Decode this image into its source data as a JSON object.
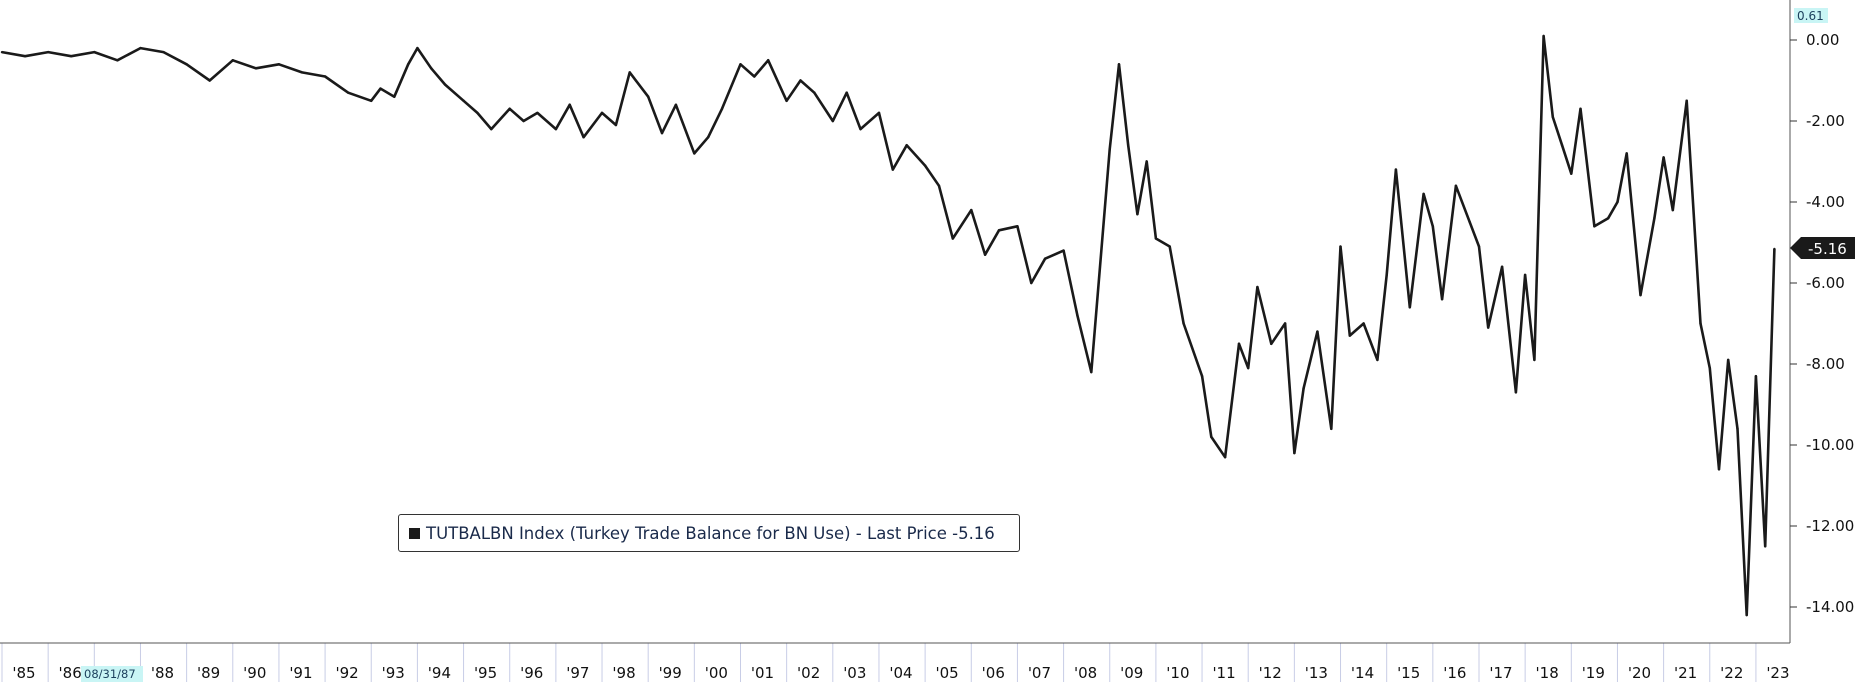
{
  "chart_data": {
    "type": "line",
    "title": "",
    "xlabel": "",
    "ylabel": "",
    "ylim": [
      -15.0,
      0.6
    ],
    "y_ticks": [
      "0.00",
      "-2.00",
      "-4.00",
      "-6.00",
      "-8.00",
      "-10.00",
      "-12.00",
      "-14.00"
    ],
    "x_tick_labels": [
      "'85",
      "'86",
      "'87",
      "'88",
      "'89",
      "'90",
      "'91",
      "'92",
      "'93",
      "'94",
      "'95",
      "'96",
      "'97",
      "'98",
      "'99",
      "'00",
      "'01",
      "'02",
      "'03",
      "'04",
      "'05",
      "'06",
      "'07",
      "'08",
      "'09",
      "'10",
      "'11",
      "'12",
      "'13",
      "'14",
      "'15",
      "'16",
      "'17",
      "'18",
      "'19",
      "'20",
      "'21",
      "'22",
      "'23"
    ],
    "axis_max_label": "0.61",
    "axis_min_date_label": "08/31/87",
    "last_value_label": "-5.16",
    "legend": "TUTBALBN Index (Turkey Trade Balance for BN Use) - Last Price -5.16",
    "series": [
      {
        "color": "#1a1a1a",
        "x": [
          1985.0,
          1985.5,
          1986.0,
          1986.5,
          1987.0,
          1987.5,
          1988.0,
          1988.5,
          1989.0,
          1989.5,
          1990.0,
          1990.5,
          1991.0,
          1991.5,
          1992.0,
          1992.5,
          1993.0,
          1993.2,
          1993.5,
          1993.8,
          1994.0,
          1994.3,
          1994.6,
          1995.0,
          1995.3,
          1995.6,
          1996.0,
          1996.3,
          1996.6,
          1997.0,
          1997.3,
          1997.6,
          1998.0,
          1998.3,
          1998.6,
          1999.0,
          1999.3,
          1999.6,
          2000.0,
          2000.3,
          2000.6,
          2001.0,
          2001.3,
          2001.6,
          2002.0,
          2002.3,
          2002.6,
          2003.0,
          2003.3,
          2003.6,
          2004.0,
          2004.3,
          2004.6,
          2005.0,
          2005.3,
          2005.6,
          2006.0,
          2006.3,
          2006.6,
          2007.0,
          2007.3,
          2007.6,
          2008.0,
          2008.3,
          2008.6,
          2009.0,
          2009.2,
          2009.4,
          2009.6,
          2009.8,
          2010.0,
          2010.3,
          2010.6,
          2011.0,
          2011.2,
          2011.5,
          2011.8,
          2012.0,
          2012.2,
          2012.5,
          2012.8,
          2013.0,
          2013.2,
          2013.5,
          2013.8,
          2014.0,
          2014.2,
          2014.5,
          2014.8,
          2015.0,
          2015.2,
          2015.5,
          2015.8,
          2016.0,
          2016.2,
          2016.5,
          2016.8,
          2017.0,
          2017.2,
          2017.5,
          2017.8,
          2018.0,
          2018.2,
          2018.4,
          2018.6,
          2018.8,
          2019.0,
          2019.2,
          2019.5,
          2019.8,
          2020.0,
          2020.2,
          2020.5,
          2020.8,
          2021.0,
          2021.2,
          2021.5,
          2021.8,
          2022.0,
          2022.2,
          2022.4,
          2022.6,
          2022.8,
          2023.0,
          2023.2,
          2023.4
        ],
        "values": [
          -0.3,
          -0.4,
          -0.3,
          -0.4,
          -0.3,
          -0.5,
          -0.2,
          -0.3,
          -0.6,
          -1.0,
          -0.5,
          -0.7,
          -0.6,
          -0.8,
          -0.9,
          -1.3,
          -1.5,
          -1.2,
          -1.4,
          -0.6,
          -0.2,
          -0.7,
          -1.1,
          -1.5,
          -1.8,
          -2.2,
          -1.7,
          -2.0,
          -1.8,
          -2.2,
          -1.6,
          -2.4,
          -1.8,
          -2.1,
          -0.8,
          -1.4,
          -2.3,
          -1.6,
          -2.8,
          -2.4,
          -1.7,
          -0.6,
          -0.9,
          -0.5,
          -1.5,
          -1.0,
          -1.3,
          -2.0,
          -1.3,
          -2.2,
          -1.8,
          -3.2,
          -2.6,
          -3.1,
          -3.6,
          -4.9,
          -4.2,
          -5.3,
          -4.7,
          -4.6,
          -6.0,
          -5.4,
          -5.2,
          -6.8,
          -8.2,
          -2.7,
          -0.6,
          -2.6,
          -4.3,
          -3.0,
          -4.9,
          -5.1,
          -7.0,
          -8.3,
          -9.8,
          -10.3,
          -7.5,
          -8.1,
          -6.1,
          -7.5,
          -7.0,
          -10.2,
          -8.6,
          -7.2,
          -9.6,
          -5.1,
          -7.3,
          -7.0,
          -7.9,
          -5.8,
          -3.2,
          -6.6,
          -3.8,
          -4.6,
          -6.4,
          -3.6,
          -4.5,
          -5.1,
          -7.1,
          -5.6,
          -8.7,
          -5.8,
          -7.9,
          0.1,
          -1.9,
          -2.6,
          -3.3,
          -1.7,
          -4.6,
          -4.4,
          -4.0,
          -2.8,
          -6.3,
          -4.4,
          -2.9,
          -4.2,
          -1.5,
          -7.0,
          -8.1,
          -10.6,
          -7.9,
          -9.6,
          -14.2,
          -8.3,
          -12.5,
          -5.16
        ]
      }
    ]
  }
}
